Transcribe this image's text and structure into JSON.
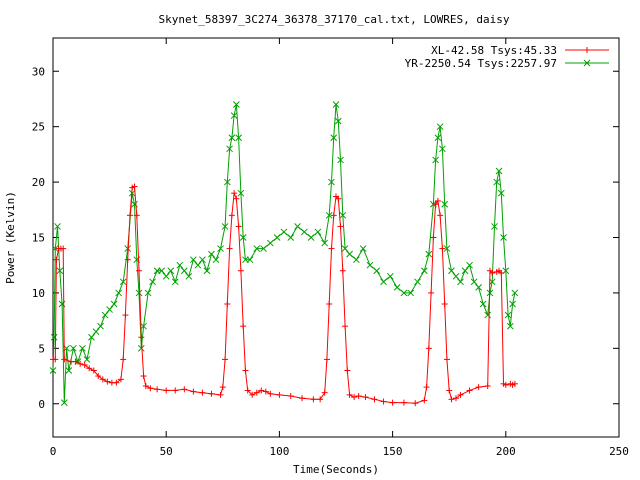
{
  "chart_data": {
    "type": "line",
    "title": "Skynet_58397_3C274_36378_37170_cal.txt, LOWRES, daisy",
    "xlabel": "Time(Seconds)",
    "ylabel": "Power (Kelvin)",
    "xlim": [
      0,
      250
    ],
    "ylim": [
      -3,
      33
    ],
    "xticks": [
      0,
      50,
      100,
      150,
      200,
      250
    ],
    "yticks": [
      0,
      5,
      10,
      15,
      20,
      25,
      30
    ],
    "grid": false,
    "legend_position": "top-right",
    "series": [
      {
        "name": "XL-42.58 Tsys:45.33",
        "color": "#ff0000",
        "marker": "plus",
        "points": [
          [
            0,
            4
          ],
          [
            1,
            4
          ],
          [
            1.5,
            13
          ],
          [
            2.5,
            14
          ],
          [
            3.5,
            14
          ],
          [
            4.5,
            14
          ],
          [
            5,
            4
          ],
          [
            8,
            3.8
          ],
          [
            10,
            3.8
          ],
          [
            12,
            3.6
          ],
          [
            14,
            3.5
          ],
          [
            16,
            3.2
          ],
          [
            18,
            3
          ],
          [
            20,
            2.5
          ],
          [
            22,
            2.2
          ],
          [
            24,
            2
          ],
          [
            26,
            1.9
          ],
          [
            28,
            1.9
          ],
          [
            30,
            2.2
          ],
          [
            31,
            4
          ],
          [
            32,
            8
          ],
          [
            33,
            13
          ],
          [
            34,
            17
          ],
          [
            35,
            19.5
          ],
          [
            36,
            19.6
          ],
          [
            37,
            17
          ],
          [
            38,
            12
          ],
          [
            39,
            6
          ],
          [
            40,
            2.5
          ],
          [
            41,
            1.6
          ],
          [
            43,
            1.4
          ],
          [
            46,
            1.3
          ],
          [
            50,
            1.2
          ],
          [
            54,
            1.2
          ],
          [
            58,
            1.3
          ],
          [
            62,
            1.1
          ],
          [
            66,
            1.0
          ],
          [
            70,
            0.9
          ],
          [
            74,
            0.8
          ],
          [
            75,
            1.5
          ],
          [
            76,
            4
          ],
          [
            77,
            9
          ],
          [
            78,
            14
          ],
          [
            79,
            17
          ],
          [
            80,
            19
          ],
          [
            81,
            18.5
          ],
          [
            82,
            16
          ],
          [
            83,
            12
          ],
          [
            84,
            7
          ],
          [
            85,
            3
          ],
          [
            86,
            1.2
          ],
          [
            88,
            0.8
          ],
          [
            90,
            1
          ],
          [
            92,
            1.2
          ],
          [
            94,
            1.1
          ],
          [
            96,
            0.9
          ],
          [
            100,
            0.8
          ],
          [
            105,
            0.7
          ],
          [
            110,
            0.5
          ],
          [
            115,
            0.4
          ],
          [
            118,
            0.4
          ],
          [
            120,
            1
          ],
          [
            121,
            4
          ],
          [
            122,
            9
          ],
          [
            123,
            14
          ],
          [
            124,
            17
          ],
          [
            125,
            18.7
          ],
          [
            126,
            18.5
          ],
          [
            127,
            16
          ],
          [
            128,
            12
          ],
          [
            129,
            7
          ],
          [
            130,
            3
          ],
          [
            131,
            0.8
          ],
          [
            133,
            0.6
          ],
          [
            135,
            0.7
          ],
          [
            138,
            0.6
          ],
          [
            142,
            0.4
          ],
          [
            146,
            0.2
          ],
          [
            150,
            0.1
          ],
          [
            155,
            0.1
          ],
          [
            160,
            0.05
          ],
          [
            164,
            0.3
          ],
          [
            165,
            1.5
          ],
          [
            166,
            5
          ],
          [
            167,
            10
          ],
          [
            168,
            15
          ],
          [
            169,
            18
          ],
          [
            170,
            18.3
          ],
          [
            171,
            17
          ],
          [
            172,
            14
          ],
          [
            173,
            9
          ],
          [
            174,
            4
          ],
          [
            175,
            1.2
          ],
          [
            176,
            0.4
          ],
          [
            178,
            0.5
          ],
          [
            180,
            0.8
          ],
          [
            184,
            1.2
          ],
          [
            188,
            1.5
          ],
          [
            192,
            1.6
          ],
          [
            193,
            12
          ],
          [
            194,
            11.8
          ],
          [
            196,
            11.9
          ],
          [
            197,
            12
          ],
          [
            198,
            11.8
          ],
          [
            199,
            1.8
          ],
          [
            200,
            1.7
          ],
          [
            202,
            1.8
          ],
          [
            203,
            1.7
          ],
          [
            204,
            1.8
          ]
        ]
      },
      {
        "name": "YR-2250.54 Tsys:2257.97",
        "color": "#00a000",
        "marker": "cross",
        "points": [
          [
            0,
            3
          ],
          [
            0.5,
            6
          ],
          [
            1,
            14
          ],
          [
            2,
            16
          ],
          [
            3,
            12
          ],
          [
            4,
            9
          ],
          [
            5,
            0.1
          ],
          [
            6,
            5
          ],
          [
            7,
            3
          ],
          [
            9,
            5
          ],
          [
            11,
            3.8
          ],
          [
            13,
            5
          ],
          [
            15,
            4
          ],
          [
            17,
            6
          ],
          [
            19,
            6.5
          ],
          [
            21,
            7
          ],
          [
            23,
            8
          ],
          [
            25,
            8.5
          ],
          [
            27,
            9
          ],
          [
            29,
            10
          ],
          [
            31,
            11
          ],
          [
            33,
            14
          ],
          [
            35,
            19
          ],
          [
            36,
            18
          ],
          [
            37,
            13
          ],
          [
            38,
            10
          ],
          [
            39,
            5
          ],
          [
            40,
            7
          ],
          [
            42,
            10
          ],
          [
            44,
            11
          ],
          [
            46,
            12
          ],
          [
            48,
            12
          ],
          [
            50,
            11.5
          ],
          [
            52,
            12
          ],
          [
            54,
            11
          ],
          [
            56,
            12.5
          ],
          [
            58,
            12
          ],
          [
            60,
            11.5
          ],
          [
            62,
            13
          ],
          [
            64,
            12.5
          ],
          [
            66,
            13
          ],
          [
            68,
            12
          ],
          [
            70,
            13.5
          ],
          [
            72,
            13
          ],
          [
            74,
            14
          ],
          [
            76,
            16
          ],
          [
            77,
            20
          ],
          [
            78,
            23
          ],
          [
            79,
            24
          ],
          [
            80,
            26
          ],
          [
            81,
            27
          ],
          [
            82,
            24
          ],
          [
            83,
            19
          ],
          [
            84,
            15
          ],
          [
            85,
            13
          ],
          [
            87,
            13
          ],
          [
            90,
            14
          ],
          [
            93,
            14
          ],
          [
            96,
            14.5
          ],
          [
            99,
            15
          ],
          [
            102,
            15.5
          ],
          [
            105,
            15
          ],
          [
            108,
            16
          ],
          [
            111,
            15.5
          ],
          [
            114,
            15
          ],
          [
            117,
            15.5
          ],
          [
            120,
            14.5
          ],
          [
            122,
            17
          ],
          [
            123,
            20
          ],
          [
            124,
            24
          ],
          [
            125,
            27
          ],
          [
            126,
            25.5
          ],
          [
            127,
            22
          ],
          [
            128,
            17
          ],
          [
            129,
            14
          ],
          [
            131,
            13.5
          ],
          [
            134,
            13
          ],
          [
            137,
            14
          ],
          [
            140,
            12.5
          ],
          [
            143,
            12
          ],
          [
            146,
            11
          ],
          [
            149,
            11.5
          ],
          [
            152,
            10.5
          ],
          [
            155,
            10
          ],
          [
            158,
            10
          ],
          [
            161,
            11
          ],
          [
            164,
            12
          ],
          [
            166,
            13.5
          ],
          [
            168,
            18
          ],
          [
            169,
            22
          ],
          [
            170,
            24
          ],
          [
            171,
            25
          ],
          [
            172,
            23
          ],
          [
            173,
            18
          ],
          [
            174,
            14
          ],
          [
            176,
            12
          ],
          [
            178,
            11.5
          ],
          [
            180,
            11
          ],
          [
            182,
            12
          ],
          [
            184,
            12.5
          ],
          [
            186,
            11
          ],
          [
            188,
            10.5
          ],
          [
            190,
            9
          ],
          [
            192,
            8
          ],
          [
            193,
            10
          ],
          [
            194,
            11
          ],
          [
            195,
            16
          ],
          [
            196,
            20
          ],
          [
            197,
            21
          ],
          [
            198,
            19
          ],
          [
            199,
            15
          ],
          [
            200,
            12
          ],
          [
            201,
            8
          ],
          [
            202,
            7
          ],
          [
            203,
            9
          ],
          [
            204,
            10
          ]
        ]
      }
    ]
  }
}
